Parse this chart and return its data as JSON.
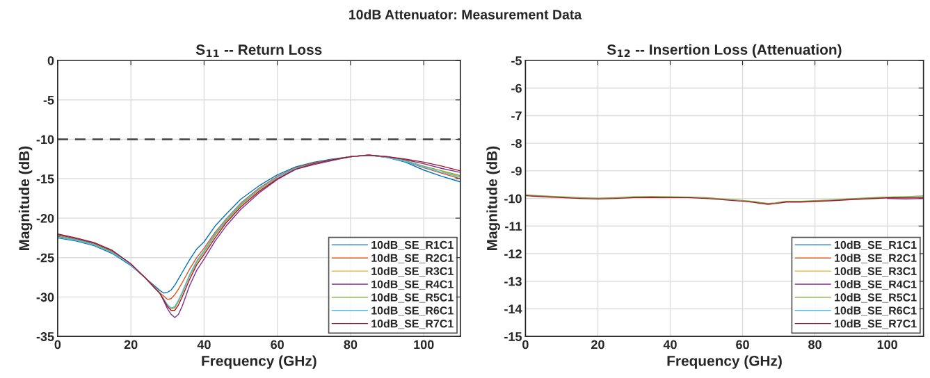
{
  "chart_data": [
    {
      "type": "line",
      "title": "S$_{11}$ -- Return Loss",
      "xlabel": "Frequency (GHz)",
      "ylabel": "Magnitude (dB)",
      "annotations": [
        "10dB Attenuator: Measurement Data"
      ],
      "x": [
        0,
        5,
        10,
        15,
        20,
        24,
        26,
        28,
        29,
        30,
        31,
        32,
        33,
        34,
        36,
        38,
        40,
        43,
        46,
        50,
        55,
        60,
        65,
        70,
        75,
        80,
        85,
        90,
        95,
        100,
        105,
        110
      ],
      "xlim": [
        0,
        110
      ],
      "xticks": [
        0,
        20,
        40,
        60,
        80,
        100
      ],
      "ylim": [
        -35,
        0
      ],
      "yticks": [
        -35,
        -30,
        -25,
        -20,
        -15,
        -10,
        -5,
        0
      ],
      "grid": true,
      "legend": "bottom right",
      "line_style": "solid",
      "ref_lines": [
        {
          "axis": "y",
          "value": -10,
          "color": "#404040",
          "line_style": "dashed"
        }
      ],
      "series": [
        {
          "name": "10dB_SE_R1C1",
          "color": "#0072bd",
          "values": [
            -22.5,
            -22.9,
            -23.5,
            -24.5,
            -26.0,
            -27.6,
            -28.4,
            -29.2,
            -29.5,
            -29.4,
            -29.1,
            -28.5,
            -27.7,
            -26.9,
            -25.3,
            -23.9,
            -23.0,
            -21.0,
            -19.5,
            -17.6,
            -15.9,
            -14.5,
            -13.5,
            -12.9,
            -12.5,
            -12.2,
            -12.0,
            -12.3,
            -12.9,
            -13.9,
            -14.7,
            -15.4
          ]
        },
        {
          "name": "10dB_SE_R2C1",
          "color": "#d95319",
          "values": [
            -22.3,
            -22.8,
            -23.4,
            -24.4,
            -25.9,
            -27.6,
            -28.5,
            -29.5,
            -29.9,
            -30.3,
            -30.2,
            -29.7,
            -29.0,
            -28.2,
            -26.5,
            -25.0,
            -23.8,
            -21.8,
            -20.1,
            -18.1,
            -16.2,
            -14.7,
            -13.6,
            -13.0,
            -12.6,
            -12.2,
            -12.0,
            -12.3,
            -12.8,
            -13.6,
            -14.3,
            -15.0
          ]
        },
        {
          "name": "10dB_SE_R3C1",
          "color": "#edb120",
          "values": [
            null,
            null,
            null,
            null,
            null,
            null,
            null,
            null,
            null,
            -31.0,
            -31.5,
            -31.4,
            -30.6,
            -29.6,
            -27.4,
            -25.6,
            -24.3,
            -22.2,
            -20.4,
            -18.4,
            -16.4,
            -14.9,
            null,
            null,
            null,
            null,
            null,
            null,
            null,
            null,
            -14.1,
            -14.7
          ]
        },
        {
          "name": "10dB_SE_R4C1",
          "color": "#7e2f8e",
          "values": [
            -22.1,
            -22.6,
            -23.2,
            -24.2,
            -25.8,
            -27.6,
            -28.6,
            -29.6,
            -30.5,
            -31.5,
            -32.2,
            -32.6,
            -32.2,
            -31.2,
            -28.6,
            -26.6,
            -25.2,
            -22.9,
            -21.0,
            -18.9,
            -16.8,
            -15.1,
            -13.8,
            -13.2,
            -12.7,
            -12.2,
            -12.0,
            -12.2,
            -12.6,
            -13.1,
            -13.7,
            -14.2
          ]
        },
        {
          "name": "10dB_SE_R5C1",
          "color": "#77ac30",
          "values": [
            -22.2,
            -22.7,
            -23.3,
            -24.3,
            -25.9,
            -27.6,
            -28.6,
            -29.6,
            -30.3,
            -31.0,
            -31.4,
            -31.3,
            -30.5,
            -29.5,
            -27.3,
            -25.5,
            -24.2,
            -22.1,
            -20.3,
            -18.3,
            -16.3,
            -14.8,
            -13.7,
            -13.1,
            -12.6,
            -12.2,
            -12.0,
            -12.3,
            -12.7,
            -13.4,
            -14.0,
            -14.6
          ]
        },
        {
          "name": "10dB_SE_R6C1",
          "color": "#4dbeee",
          "values": [
            -22.4,
            -22.8,
            -23.4,
            -24.4,
            -25.9,
            -27.6,
            -28.6,
            -29.6,
            -30.3,
            -31.0,
            -31.4,
            -31.2,
            -30.4,
            -29.4,
            -27.2,
            -25.4,
            -24.1,
            -22.0,
            -20.2,
            -18.2,
            -16.3,
            -14.8,
            -13.7,
            -13.1,
            -12.6,
            -12.2,
            -12.0,
            -12.3,
            -12.8,
            -13.5,
            -14.2,
            -14.8
          ]
        },
        {
          "name": "10dB_SE_R7C1",
          "color": "#a2142f",
          "values": [
            -22.0,
            -22.5,
            -23.1,
            -24.1,
            -25.8,
            -27.6,
            -28.6,
            -29.6,
            -30.4,
            -31.2,
            -31.7,
            -31.7,
            -31.0,
            -30.0,
            -27.8,
            -25.9,
            -24.6,
            -22.5,
            -20.6,
            -18.6,
            -16.6,
            -15.0,
            -13.8,
            -13.1,
            -12.6,
            -12.2,
            -12.0,
            -12.2,
            -12.5,
            -12.9,
            -13.4,
            -14.0
          ]
        }
      ]
    },
    {
      "type": "line",
      "title": "S$_{12}$ -- Insertion Loss (Attenuation)",
      "xlabel": "Frequency (GHz)",
      "ylabel": "Magnitude (dB)",
      "x": [
        0,
        5,
        10,
        15,
        20,
        25,
        30,
        35,
        40,
        45,
        50,
        55,
        60,
        63,
        65,
        67,
        69,
        72,
        76,
        80,
        85,
        90,
        95,
        100,
        105,
        110
      ],
      "xlim": [
        0,
        110
      ],
      "xticks": [
        0,
        20,
        40,
        60,
        80,
        100
      ],
      "ylim": [
        -15,
        -5
      ],
      "yticks": [
        -15,
        -14,
        -13,
        -12,
        -11,
        -10,
        -9,
        -8,
        -7,
        -6,
        -5
      ],
      "grid": true,
      "legend": "bottom right",
      "line_style": "solid",
      "series": [
        {
          "name": "10dB_SE_R1C1",
          "color": "#0072bd",
          "values": [
            null,
            null,
            null,
            null,
            null,
            null,
            null,
            null,
            null,
            null,
            null,
            null,
            null,
            null,
            null,
            null,
            null,
            null,
            null,
            null,
            null,
            null,
            null,
            null,
            null,
            null
          ]
        },
        {
          "name": "10dB_SE_R2C1",
          "color": "#d95319",
          "values": [
            null,
            null,
            null,
            null,
            null,
            null,
            null,
            null,
            null,
            null,
            null,
            null,
            null,
            null,
            null,
            null,
            null,
            null,
            null,
            null,
            null,
            null,
            null,
            null,
            null,
            null
          ]
        },
        {
          "name": "10dB_SE_R3C1",
          "color": "#edb120",
          "values": [
            null,
            null,
            null,
            null,
            null,
            null,
            null,
            null,
            null,
            null,
            null,
            null,
            null,
            null,
            null,
            null,
            null,
            null,
            null,
            null,
            null,
            null,
            null,
            null,
            null,
            null
          ]
        },
        {
          "name": "10dB_SE_R4C1",
          "color": "#7e2f8e",
          "values": [
            null,
            null,
            null,
            null,
            null,
            null,
            null,
            null,
            null,
            null,
            null,
            null,
            null,
            null,
            null,
            null,
            null,
            null,
            null,
            null,
            null,
            null,
            null,
            -10.0,
            -10.02,
            -10.0
          ]
        },
        {
          "name": "10dB_SE_R5C1",
          "color": "#77ac30",
          "values": [
            -9.87,
            -9.91,
            -9.94,
            -9.97,
            -9.99,
            -9.97,
            -9.94,
            -9.93,
            -9.94,
            -9.95,
            -9.97,
            -10.02,
            -10.07,
            -10.11,
            -10.15,
            -10.18,
            -10.16,
            -10.1,
            -10.1,
            -10.08,
            -10.05,
            -10.01,
            -9.98,
            -9.95,
            -9.93,
            -9.91
          ]
        },
        {
          "name": "10dB_SE_R6C1",
          "color": "#4dbeee",
          "values": [
            null,
            null,
            null,
            null,
            null,
            null,
            null,
            null,
            null,
            null,
            null,
            null,
            null,
            null,
            null,
            null,
            null,
            null,
            null,
            null,
            null,
            null,
            null,
            null,
            null,
            null
          ]
        },
        {
          "name": "10dB_SE_R7C1",
          "color": "#a2142f",
          "values": [
            -9.9,
            -9.94,
            -9.97,
            -10.0,
            -10.02,
            -10.0,
            -9.97,
            -9.96,
            -9.97,
            -9.97,
            -10.0,
            -10.05,
            -10.1,
            -10.14,
            -10.18,
            -10.21,
            -10.19,
            -10.13,
            -10.13,
            -10.11,
            -10.08,
            -10.04,
            -10.01,
            -9.98,
            -9.98,
            -9.97
          ]
        }
      ]
    }
  ]
}
